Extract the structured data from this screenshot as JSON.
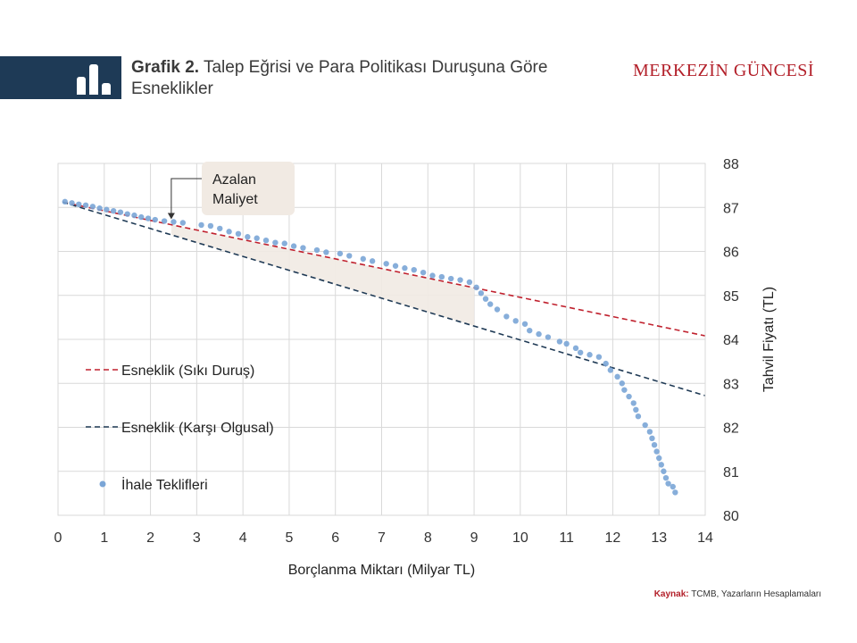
{
  "header": {
    "title_bold": "Grafik 2.",
    "title_rest": "Talep Eğrisi ve Para Politikası Duruşuna Göre Esneklikler",
    "brand": "MERKEZİN GÜNCESİ",
    "bar_color": "#1e3a56",
    "brand_color": "#b3202a"
  },
  "source": {
    "label": "Kaynak:",
    "text": "TCMB, Yazarların Hesaplamaları"
  },
  "chart_data": {
    "type": "scatter",
    "xlabel": "Borçlanma Miktarı (Milyar TL)",
    "ylabel": "Tahvil Fiyatı (TL)",
    "xlim": [
      0,
      14
    ],
    "ylim": [
      80,
      88
    ],
    "xticks": [
      0,
      1,
      2,
      3,
      4,
      5,
      6,
      7,
      8,
      9,
      10,
      11,
      12,
      13,
      14
    ],
    "yticks": [
      80,
      81,
      82,
      83,
      84,
      85,
      86,
      87,
      88
    ],
    "y_axis_side": "right",
    "grid": true,
    "legend_position": "left",
    "annotation": {
      "lines": [
        "Azalan",
        "Maliyet"
      ],
      "arrow_to": [
        2.45,
        86.67
      ]
    },
    "shaded_region": {
      "x_range": [
        2.45,
        9.0
      ],
      "fill": "#f1eae3"
    },
    "series": [
      {
        "name": "Esneklik (Sıkı Duruş)",
        "kind": "dashed-line",
        "color": "#c0212e",
        "points": [
          [
            0.1,
            87.12
          ],
          [
            14.0,
            84.08
          ]
        ]
      },
      {
        "name": "Esneklik (Karşı Olgusal)",
        "kind": "dashed-line",
        "color": "#1f3a55",
        "points": [
          [
            0.1,
            87.12
          ],
          [
            14.0,
            82.72
          ]
        ]
      },
      {
        "name": "İhale Teklifleri",
        "kind": "scatter",
        "color": "#7aa5d6",
        "points": [
          [
            0.15,
            87.13
          ],
          [
            0.3,
            87.1
          ],
          [
            0.45,
            87.07
          ],
          [
            0.6,
            87.05
          ],
          [
            0.75,
            87.02
          ],
          [
            0.9,
            86.98
          ],
          [
            1.05,
            86.95
          ],
          [
            1.2,
            86.92
          ],
          [
            1.35,
            86.89
          ],
          [
            1.5,
            86.85
          ],
          [
            1.65,
            86.82
          ],
          [
            1.8,
            86.78
          ],
          [
            1.95,
            86.75
          ],
          [
            2.1,
            86.72
          ],
          [
            2.3,
            86.69
          ],
          [
            2.5,
            86.67
          ],
          [
            2.7,
            86.65
          ],
          [
            3.1,
            86.6
          ],
          [
            3.3,
            86.58
          ],
          [
            3.5,
            86.52
          ],
          [
            3.7,
            86.45
          ],
          [
            3.9,
            86.4
          ],
          [
            4.1,
            86.33
          ],
          [
            4.3,
            86.3
          ],
          [
            4.5,
            86.25
          ],
          [
            4.7,
            86.2
          ],
          [
            4.9,
            86.18
          ],
          [
            5.1,
            86.12
          ],
          [
            5.3,
            86.08
          ],
          [
            5.6,
            86.03
          ],
          [
            5.8,
            85.98
          ],
          [
            6.1,
            85.95
          ],
          [
            6.3,
            85.9
          ],
          [
            6.6,
            85.83
          ],
          [
            6.8,
            85.78
          ],
          [
            7.1,
            85.72
          ],
          [
            7.3,
            85.67
          ],
          [
            7.5,
            85.62
          ],
          [
            7.7,
            85.58
          ],
          [
            7.9,
            85.52
          ],
          [
            8.1,
            85.45
          ],
          [
            8.3,
            85.42
          ],
          [
            8.5,
            85.38
          ],
          [
            8.7,
            85.35
          ],
          [
            8.9,
            85.3
          ],
          [
            9.05,
            85.18
          ],
          [
            9.15,
            85.05
          ],
          [
            9.25,
            84.92
          ],
          [
            9.35,
            84.8
          ],
          [
            9.5,
            84.68
          ],
          [
            9.7,
            84.52
          ],
          [
            9.9,
            84.42
          ],
          [
            10.1,
            84.35
          ],
          [
            10.2,
            84.2
          ],
          [
            10.4,
            84.12
          ],
          [
            10.6,
            84.05
          ],
          [
            10.85,
            83.95
          ],
          [
            11.0,
            83.9
          ],
          [
            11.2,
            83.8
          ],
          [
            11.3,
            83.7
          ],
          [
            11.5,
            83.65
          ],
          [
            11.7,
            83.6
          ],
          [
            11.85,
            83.45
          ],
          [
            11.95,
            83.3
          ],
          [
            12.1,
            83.15
          ],
          [
            12.2,
            83.0
          ],
          [
            12.25,
            82.85
          ],
          [
            12.35,
            82.7
          ],
          [
            12.45,
            82.55
          ],
          [
            12.5,
            82.4
          ],
          [
            12.55,
            82.25
          ],
          [
            12.7,
            82.05
          ],
          [
            12.8,
            81.9
          ],
          [
            12.85,
            81.75
          ],
          [
            12.9,
            81.6
          ],
          [
            12.95,
            81.45
          ],
          [
            13.0,
            81.3
          ],
          [
            13.05,
            81.15
          ],
          [
            13.1,
            81.0
          ],
          [
            13.15,
            80.85
          ],
          [
            13.2,
            80.72
          ],
          [
            13.3,
            80.65
          ],
          [
            13.35,
            80.52
          ]
        ]
      }
    ]
  }
}
